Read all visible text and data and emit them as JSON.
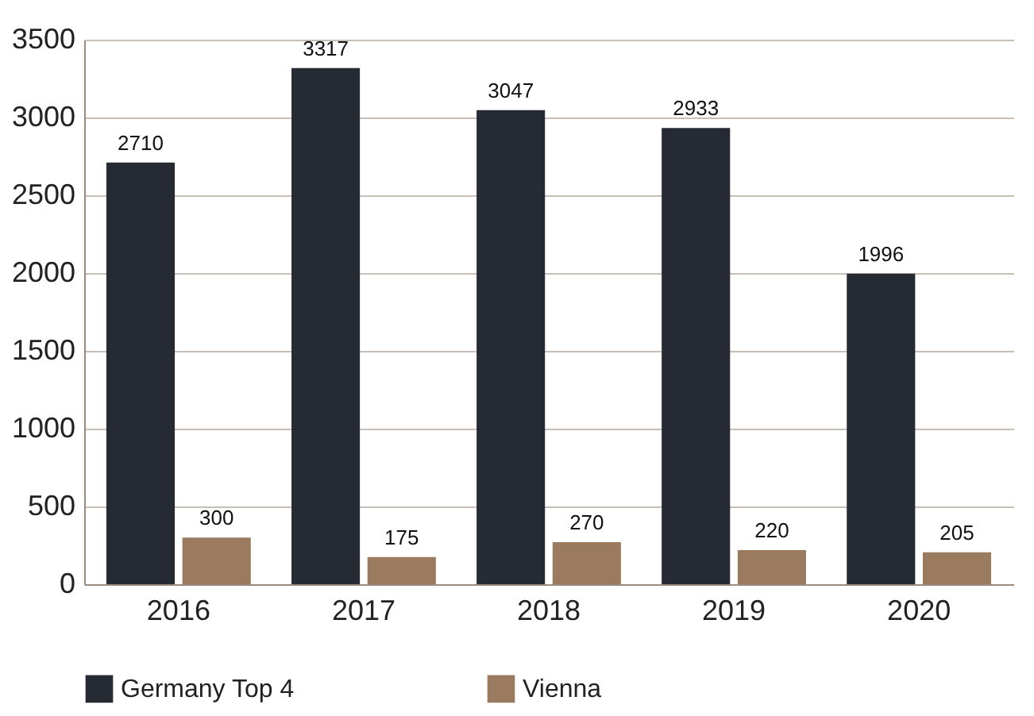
{
  "chart_data": {
    "type": "bar",
    "categories": [
      "2016",
      "2017",
      "2018",
      "2019",
      "2020"
    ],
    "series": [
      {
        "name": "Germany Top 4",
        "color": "#262a33",
        "values": [
          2710,
          3317,
          3047,
          2933,
          1996
        ]
      },
      {
        "name": "Vienna",
        "color": "#9a7b5f",
        "values": [
          300,
          175,
          270,
          220,
          205
        ]
      }
    ],
    "ylim": [
      0,
      3500
    ],
    "yticks": [
      0,
      500,
      1000,
      1500,
      2000,
      2500,
      3000,
      3500
    ],
    "grid": "y",
    "legend": "bottom",
    "data_labels": true
  }
}
